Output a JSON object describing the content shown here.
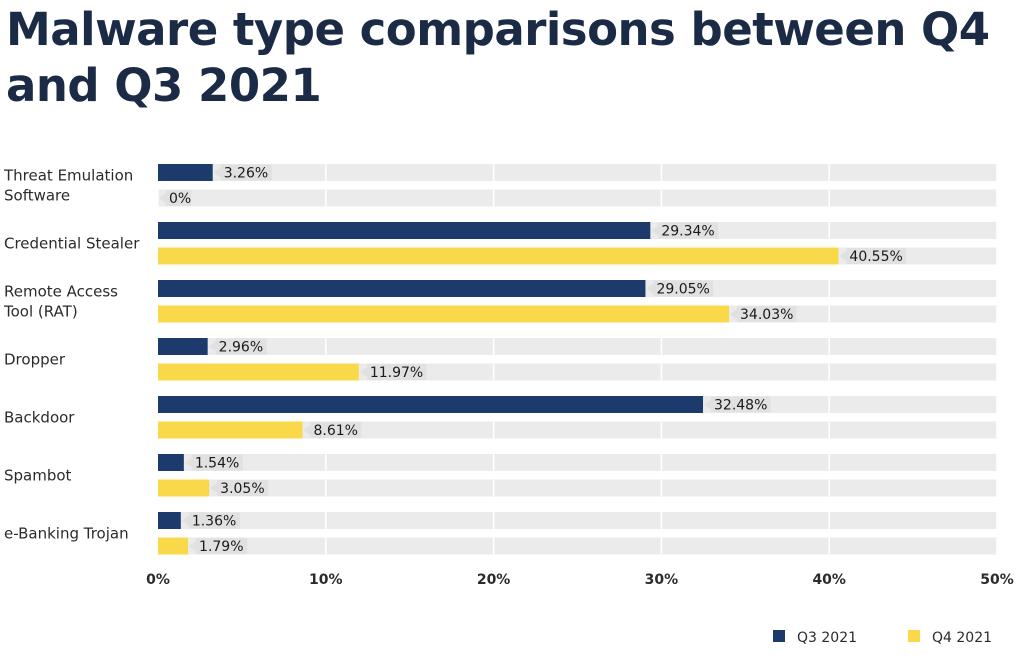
{
  "page_title": "Malware type comparisons between Q4 and Q3 2021",
  "chart_data": {
    "type": "bar",
    "orientation": "horizontal",
    "title": "Malware type comparisons between Q4 and Q3 2021",
    "categories": [
      [
        "Threat Emulation",
        "Software"
      ],
      [
        "Credential Stealer"
      ],
      [
        "Remote Access",
        "Tool (RAT)"
      ],
      [
        "Dropper"
      ],
      [
        "Backdoor"
      ],
      [
        "Spambot"
      ],
      [
        "e-Banking Trojan"
      ]
    ],
    "series": [
      {
        "name": "Q3 2021",
        "color": "#1c3a6b",
        "values": [
          3.26,
          29.34,
          29.05,
          2.96,
          32.48,
          1.54,
          1.36
        ],
        "labels": [
          "3.26%",
          "29.34%",
          "29.05%",
          "2.96%",
          "32.48%",
          "1.54%",
          "1.36%"
        ]
      },
      {
        "name": "Q4 2021",
        "color": "#f9d94a",
        "values": [
          0,
          40.55,
          34.03,
          11.97,
          8.61,
          3.05,
          1.79
        ],
        "labels": [
          "0%",
          "40.55%",
          "34.03%",
          "11.97%",
          "8.61%",
          "3.05%",
          "1.79%"
        ]
      }
    ],
    "xlim": [
      0,
      50
    ],
    "xticks": [
      "0%",
      "10%",
      "20%",
      "30%",
      "40%",
      "50%"
    ],
    "xtick_values": [
      0,
      10,
      20,
      30,
      40,
      50
    ],
    "track_color": "#ebebeb",
    "label_bg_color": "#e1e1e1",
    "legend_position": "bottom-right",
    "grid": true
  }
}
